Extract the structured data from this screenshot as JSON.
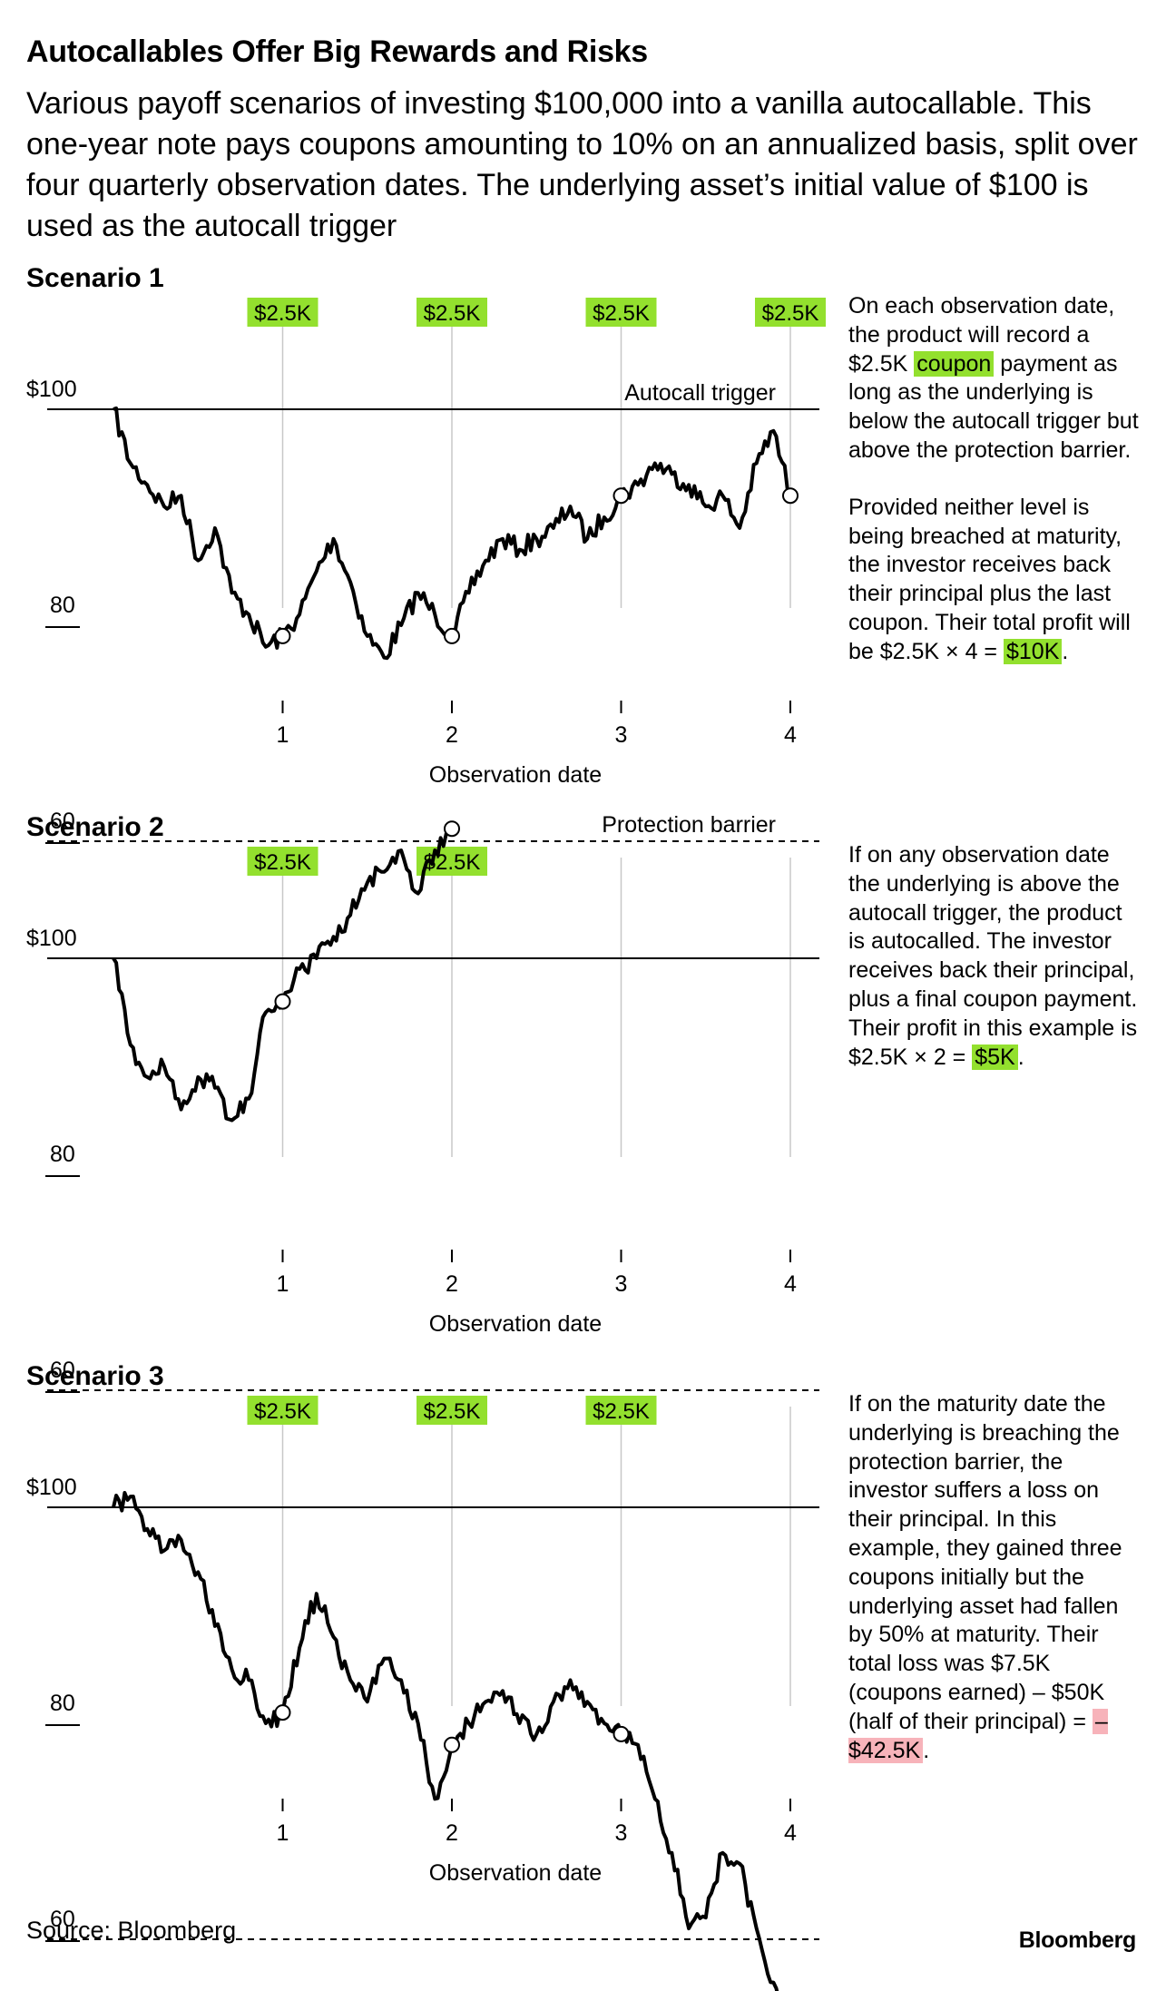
{
  "title": "Autocallables Offer Big Rewards and Risks",
  "subtitle": "Various payoff scenarios of investing $100,000 into a vanilla autocallable. This one-year note pays coupons amounting to 10% on an annualized basis, split over four quarterly observation dates. The underlying asset’s initial value of $100 is used as the autocall trigger",
  "colors": {
    "coupon_highlight": "#93e02e",
    "loss_highlight": "#f7b3ba",
    "line": "#000000",
    "gridline": "#c8c8c8"
  },
  "chart_data": [
    {
      "type": "line",
      "title": "Scenario 1",
      "xlabel": "Observation date",
      "x_ticks": [
        "1",
        "2",
        "3",
        "4"
      ],
      "y_ticks": [
        "$100",
        "80",
        "60"
      ],
      "y_tick_values": [
        100,
        80,
        60
      ],
      "reference_lines": [
        {
          "label": "Autocall trigger",
          "value": 100,
          "style": "solid"
        },
        {
          "label": "Protection barrier",
          "value": 60,
          "style": "dashed"
        }
      ],
      "coupons": [
        "$2.5K",
        "$2.5K",
        "$2.5K",
        "$2.5K"
      ],
      "series": [
        {
          "x": [
            0,
            0.1,
            0.2,
            0.3,
            0.4,
            0.5,
            0.6,
            0.7,
            0.8,
            0.9,
            1.0,
            1.1,
            1.2,
            1.3,
            1.4,
            1.5,
            1.6,
            1.7,
            1.8,
            1.9,
            2.0,
            2.1,
            2.2,
            2.3,
            2.4,
            2.5,
            2.6,
            2.7,
            2.8,
            2.9,
            3.0,
            3.1,
            3.2,
            3.3,
            3.4,
            3.5,
            3.6,
            3.7,
            3.8,
            3.9,
            4.0
          ],
          "values": [
            100,
            95,
            93,
            91,
            92,
            86,
            89,
            83,
            81,
            78,
            79,
            81,
            85,
            88,
            84,
            79,
            77,
            80,
            83,
            81,
            79,
            83,
            86,
            88,
            87,
            88,
            89,
            91,
            88,
            90,
            92,
            93,
            95,
            94,
            93,
            91,
            92,
            89,
            95,
            98,
            92
          ],
          "observations": [
            79,
            79,
            92,
            92
          ]
        }
      ]
    },
    {
      "type": "line",
      "title": "Scenario 2",
      "xlabel": "Observation date",
      "x_ticks": [
        "1",
        "2",
        "3",
        "4"
      ],
      "y_ticks": [
        "$100",
        "80",
        "60"
      ],
      "y_tick_values": [
        100,
        80,
        60
      ],
      "reference_lines": [
        {
          "label": "",
          "value": 100,
          "style": "solid"
        },
        {
          "label": "",
          "value": 60,
          "style": "dashed"
        }
      ],
      "coupons": [
        "$2.5K",
        "$2.5K"
      ],
      "series": [
        {
          "x": [
            0,
            0.1,
            0.2,
            0.3,
            0.4,
            0.5,
            0.6,
            0.7,
            0.8,
            0.9,
            1.0,
            1.1,
            1.2,
            1.3,
            1.4,
            1.5,
            1.6,
            1.7,
            1.8,
            1.9,
            2.0
          ],
          "values": [
            100,
            92,
            89,
            90,
            86,
            89,
            88,
            85,
            87,
            95,
            96,
            99,
            100,
            102,
            104,
            107,
            108,
            110,
            106,
            110,
            112
          ],
          "observations": [
            96,
            112
          ]
        }
      ]
    },
    {
      "type": "line",
      "title": "Scenario 3",
      "xlabel": "Observation date",
      "x_ticks": [
        "1",
        "2",
        "3",
        "4"
      ],
      "y_ticks": [
        "$100",
        "80",
        "60"
      ],
      "y_tick_values": [
        100,
        80,
        60
      ],
      "reference_lines": [
        {
          "label": "",
          "value": 100,
          "style": "solid"
        },
        {
          "label": "",
          "value": 60,
          "style": "dashed"
        }
      ],
      "coupons": [
        "$2.5K",
        "$2.5K",
        "$2.5K"
      ],
      "end_label": "$50",
      "series": [
        {
          "x": [
            0,
            0.1,
            0.2,
            0.3,
            0.4,
            0.5,
            0.6,
            0.7,
            0.8,
            0.9,
            1.0,
            1.1,
            1.2,
            1.3,
            1.4,
            1.5,
            1.6,
            1.7,
            1.8,
            1.9,
            2.0,
            2.1,
            2.2,
            2.3,
            2.4,
            2.5,
            2.6,
            2.7,
            2.8,
            2.9,
            3.0,
            3.1,
            3.2,
            3.3,
            3.4,
            3.5,
            3.6,
            3.7,
            3.8,
            3.9,
            4.0
          ],
          "values": [
            100,
            101,
            98,
            96,
            97,
            94,
            89,
            85,
            84,
            80,
            81,
            87,
            92,
            88,
            84,
            82,
            86,
            84,
            80,
            73,
            78,
            80,
            82,
            83,
            80,
            79,
            82,
            84,
            82,
            80,
            79,
            78,
            73,
            68,
            61,
            62,
            68,
            67,
            61,
            56,
            50
          ],
          "observations": [
            81,
            78,
            79,
            50
          ]
        }
      ]
    }
  ],
  "notes": [
    {
      "before": "On each observation date, the product will record a $2.5K ",
      "hl": "coupon",
      "after": " payment as long as the underlying is below the autocall trigger but above the protection barrier.",
      "p2_before": "Provided neither level is being breached at maturity, the investor receives back their principal plus the last coupon. Their total profit will be $2.5K × 4 = ",
      "p2_hl": "$10K",
      "p2_after": "."
    },
    {
      "before": "If on any observation date the underlying is above the autocall trigger, the product is autocalled. The investor receives back their principal, plus a final coupon payment. Their profit in this example is $2.5K × 2 = ",
      "hl": "$5K",
      "after": "."
    },
    {
      "before": "If on the maturity date the underlying is breaching the protection barrier, the investor suffers a loss on their principal. In this example, they gained three coupons initially but the underlying asset had fallen by 50% at maturity. Their total loss was $7.5K (coupons earned) – $50K (half of their principal) = ",
      "hl": "–$42.5K",
      "after": "."
    }
  ],
  "source": "Source: Bloomberg",
  "brand": "Bloomberg"
}
